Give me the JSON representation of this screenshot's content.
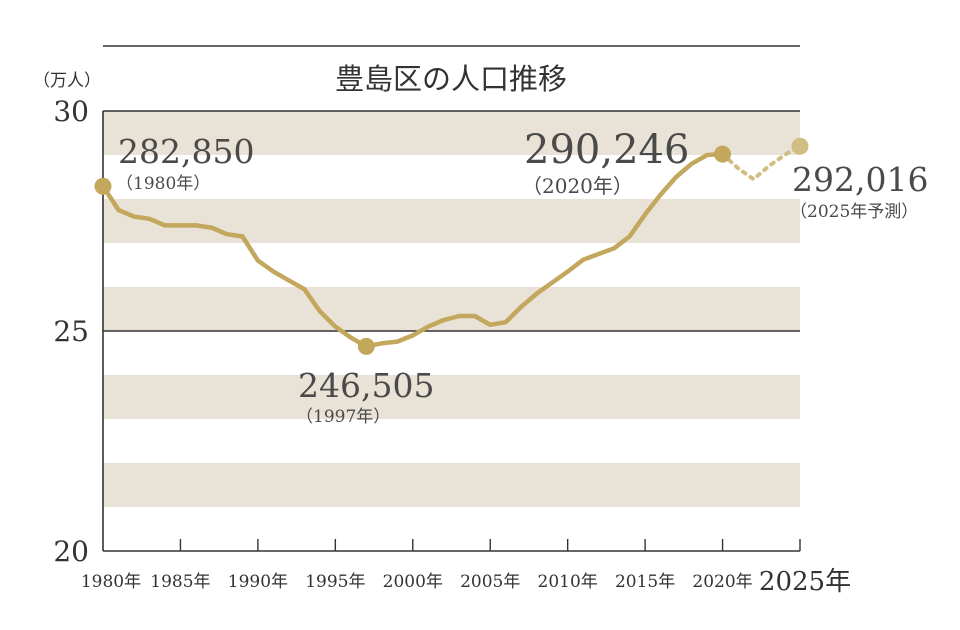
{
  "chart_data": {
    "type": "line",
    "title": "豊島区の人口推移",
    "unit_label": "（万人）",
    "ylim": [
      20,
      30
    ],
    "y_ticks": [
      "30",
      "25",
      "20"
    ],
    "x_tick_labels": [
      "1980年",
      "1985年",
      "1990年",
      "1995年",
      "2000年",
      "2005年",
      "2010年",
      "2015年",
      "2020年",
      "2025年"
    ],
    "x_tick_years": [
      1980,
      1985,
      1990,
      1995,
      2000,
      2005,
      2010,
      2015,
      2020,
      2025
    ],
    "xlim": [
      1980,
      2025
    ],
    "series": [
      {
        "style": "solid",
        "x": [
          1980,
          1981,
          1982,
          1983,
          1984,
          1985,
          1986,
          1987,
          1988,
          1989,
          1990,
          1991,
          1992,
          1993,
          1994,
          1995,
          1996,
          1997,
          1998,
          1999,
          2000,
          2001,
          2002,
          2003,
          2004,
          2005,
          2006,
          2007,
          2008,
          2009,
          2010,
          2011,
          2012,
          2013,
          2014,
          2015,
          2016,
          2017,
          2018,
          2019,
          2020
        ],
        "y": [
          28.29,
          27.75,
          27.6,
          27.55,
          27.4,
          27.4,
          27.4,
          27.35,
          27.2,
          27.15,
          26.6,
          26.35,
          26.15,
          25.95,
          25.45,
          25.1,
          24.85,
          24.65,
          24.72,
          24.76,
          24.9,
          25.1,
          25.25,
          25.34,
          25.34,
          25.14,
          25.2,
          25.55,
          25.85,
          26.1,
          26.35,
          26.62,
          26.75,
          26.88,
          27.15,
          27.65,
          28.1,
          28.5,
          28.8,
          29.0,
          29.02
        ]
      },
      {
        "style": "dotted",
        "x": [
          2020,
          2021,
          2022,
          2023,
          2024,
          2025
        ],
        "y": [
          29.02,
          28.7,
          28.45,
          28.75,
          29.0,
          29.2
        ]
      }
    ],
    "highlight_points": [
      {
        "x": 1980,
        "y": 28.29,
        "value_label": "282,850",
        "sub_label": "（1980年）"
      },
      {
        "x": 1997,
        "y": 24.65,
        "value_label": "246,505",
        "sub_label": "（1997年）"
      },
      {
        "x": 2020,
        "y": 29.02,
        "value_label": "290,246",
        "sub_label": "（2020年）"
      },
      {
        "x": 2025,
        "y": 29.2,
        "value_label": "292,016",
        "sub_label": "（2025年予測）"
      }
    ],
    "line_color": "#c2a75c",
    "projection_point_color": "#d2bd82",
    "band_color": "#e9e2d7",
    "axis_color": "#333333"
  }
}
